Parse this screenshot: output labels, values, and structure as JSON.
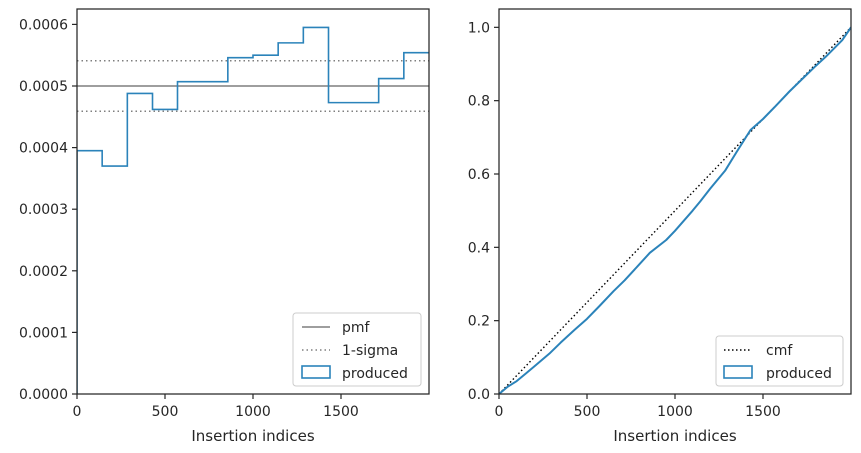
{
  "colors": {
    "produced": "#2b83ba",
    "reference": "#7f7f7f",
    "cmf": "#000000",
    "axes": "#262626"
  },
  "chart_data": [
    {
      "type": "step",
      "xlabel": "Insertion indices",
      "ylabel": "",
      "xlim": [
        0,
        2000
      ],
      "ylim": [
        0,
        0.000625
      ],
      "xticks": [
        0,
        500,
        1000,
        1500
      ],
      "yticks": [
        0,
        0.0001,
        0.0002,
        0.0003,
        0.0004,
        0.0005,
        0.0006
      ],
      "xtick_labels": [
        "0",
        "500",
        "1000",
        "1500"
      ],
      "ytick_labels": [
        "0.0000",
        "0.0001",
        "0.0002",
        "0.0003",
        "0.0004",
        "0.0005",
        "0.0006"
      ],
      "legend_position": "lower right",
      "pmf": 0.0005,
      "sigma_band": [
        0.000459,
        0.000541
      ],
      "bin_edges": [
        0,
        143,
        286,
        429,
        571,
        714,
        857,
        1000,
        1143,
        1286,
        1429,
        1571,
        1714,
        1857,
        2000
      ],
      "produced": [
        0.000395,
        0.00037,
        0.000488,
        0.000462,
        0.000507,
        0.000507,
        0.000546,
        0.00055,
        0.00057,
        0.000595,
        0.000473,
        0.000473,
        0.000512,
        0.000554
      ],
      "series": [
        {
          "name": "pmf",
          "style": "solid"
        },
        {
          "name": "1-sigma",
          "style": "dotted"
        },
        {
          "name": "produced",
          "style": "step"
        }
      ]
    },
    {
      "type": "line",
      "xlabel": "Insertion indices",
      "ylabel": "",
      "xlim": [
        0,
        2000
      ],
      "ylim": [
        0,
        1.05
      ],
      "xticks": [
        0,
        500,
        1000,
        1500
      ],
      "yticks": [
        0,
        0.2,
        0.4,
        0.6,
        0.8,
        1.0
      ],
      "xtick_labels": [
        "0",
        "500",
        "1000",
        "1500"
      ],
      "ytick_labels": [
        "0.0",
        "0.2",
        "0.4",
        "0.6",
        "0.8",
        "1.0"
      ],
      "legend_position": "lower right",
      "cmf": {
        "x": [
          0,
          2000
        ],
        "y": [
          0,
          1.0
        ]
      },
      "produced_cdf": {
        "x": [
          0,
          50,
          100,
          150,
          200,
          286,
          350,
          429,
          500,
          571,
          650,
          714,
          800,
          857,
          950,
          1000,
          1100,
          1143,
          1200,
          1286,
          1350,
          1429,
          1500,
          1571,
          1650,
          1714,
          1800,
          1857,
          1950,
          2000
        ],
        "y": [
          0,
          0.02,
          0.035,
          0.055,
          0.075,
          0.11,
          0.14,
          0.175,
          0.205,
          0.24,
          0.28,
          0.31,
          0.355,
          0.385,
          0.42,
          0.445,
          0.5,
          0.525,
          0.56,
          0.61,
          0.66,
          0.72,
          0.75,
          0.785,
          0.825,
          0.855,
          0.895,
          0.92,
          0.965,
          1.0
        ]
      },
      "series": [
        {
          "name": "cmf",
          "style": "dotted"
        },
        {
          "name": "produced",
          "style": "step"
        }
      ]
    }
  ]
}
